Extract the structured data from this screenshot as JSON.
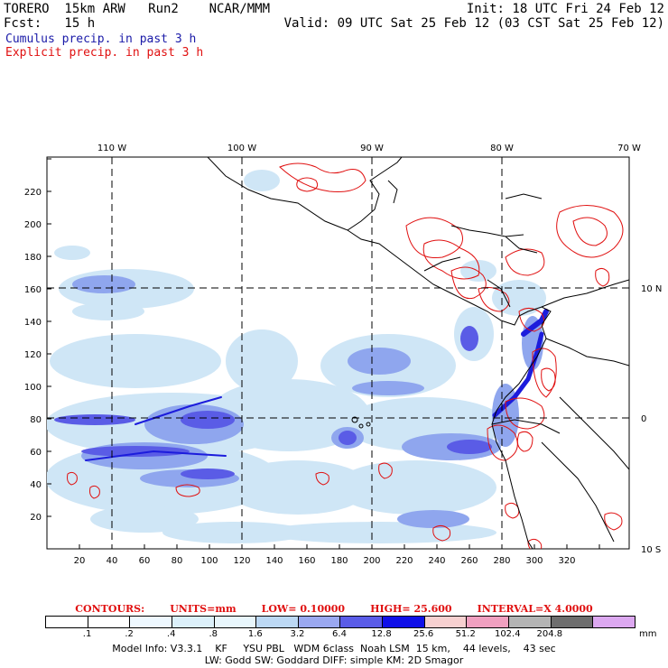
{
  "header": {
    "line1_left": "TORERO  15km ARW   Run2    NCAR/MMM",
    "line1_right": "Init: 18 UTC Fri 24 Feb 12",
    "line2_left": "Fcst:   15 h",
    "line2_right": "Valid: 09 UTC Sat 25 Feb 12 (03 CST Sat 25 Feb 12)",
    "cumulus_label": "Cumulus precip. in past 3 h",
    "explicit_label": "Explicit precip. in past 3 h"
  },
  "map": {
    "x_ticks": [
      "20",
      "40",
      "60",
      "80",
      "100",
      "120",
      "140",
      "160",
      "180",
      "200",
      "220",
      "240",
      "260",
      "280",
      "300",
      "320"
    ],
    "y_ticks": [
      "20",
      "40",
      "60",
      "80",
      "100",
      "120",
      "140",
      "160",
      "180",
      "200",
      "220"
    ],
    "lon_labels": [
      "110 W",
      "100 W",
      "90 W",
      "80 W",
      "70 W"
    ],
    "lat_labels": [
      "10 N",
      "0",
      "10 S"
    ],
    "colors": {
      "light": "#cfe6f6",
      "med": "#8fa6ee",
      "dark": "#5a5ce6",
      "deep": "#1c1cdc",
      "contour": "#e01010"
    }
  },
  "contours_line": {
    "label": "CONTOURS:",
    "units": "UNITS=mm",
    "low": "LOW= 0.10000",
    "high": "HIGH=  25.600",
    "interval": "INTERVAL=X  4.0000"
  },
  "colorbar": {
    "colors": [
      "#ffffff",
      "#ffffff",
      "#eef8ff",
      "#dcf0fa",
      "#e8f6fc",
      "#bcd8f4",
      "#9aa8f0",
      "#5a5ce8",
      "#1010e8",
      "#f6d0d0",
      "#f0a0c0",
      "#b4b4b4",
      "#6e6e6e",
      "#dca8f0"
    ],
    "labels": [
      ".1",
      ".2",
      ".4",
      ".8",
      "1.6",
      "3.2",
      "6.4",
      "12.8",
      "25.6",
      "51.2",
      "102.4",
      "204.8"
    ],
    "unit": "mm"
  },
  "footer": {
    "line1": "Model Info: V3.3.1    KF     YSU PBL   WDM 6class  Noah LSM  15 km,    44 levels,    43 sec",
    "line2": "LW: Godd SW: Goddard DIFF: simple KM: 2D Smagor"
  }
}
